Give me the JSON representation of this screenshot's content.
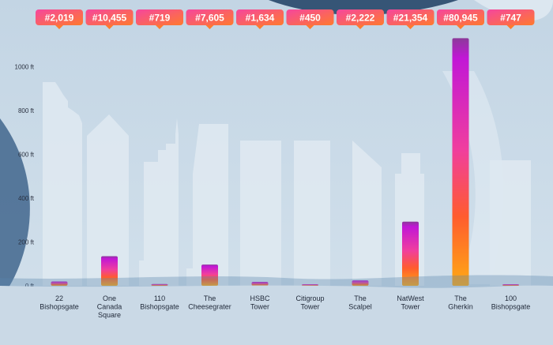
{
  "chart_data": {
    "type": "bar",
    "title": "",
    "xlabel": "",
    "ylabel": "",
    "unit": "ft",
    "ylim": [
      0,
      1100
    ],
    "yticks": [
      0,
      200,
      400,
      600,
      800,
      1000
    ],
    "ytick_labels": [
      "0 ft",
      "200 ft",
      "400 ft",
      "600 ft",
      "800 ft",
      "1000 ft"
    ],
    "grid": false,
    "categories": [
      {
        "label": [
          "22",
          "Bishopsgate"
        ],
        "badge": "#2,019",
        "value": 20
      },
      {
        "label": [
          "One",
          "Canada",
          "Square"
        ],
        "badge": "#10,455",
        "value": 135
      },
      {
        "label": [
          "110",
          "Bishopsgate"
        ],
        "badge": "#719",
        "value": 8
      },
      {
        "label": [
          "The",
          "Cheesegrater"
        ],
        "badge": "#7,605",
        "value": 97
      },
      {
        "label": [
          "HSBC",
          "Tower"
        ],
        "badge": "#1,634",
        "value": 18
      },
      {
        "label": [
          "Citigroup",
          "Tower"
        ],
        "badge": "#450",
        "value": 4
      },
      {
        "label": [
          "The",
          "Scalpel"
        ],
        "badge": "#2,222",
        "value": 25
      },
      {
        "label": [
          "NatWest",
          "Tower"
        ],
        "badge": "#21,354",
        "value": 293
      },
      {
        "label": [
          "The",
          "Gherkin"
        ],
        "badge": "#80,945",
        "value": 1130
      },
      {
        "label": [
          "100",
          "Bishopsgate"
        ],
        "badge": "#747",
        "value": 5
      }
    ],
    "colors": {
      "background": "#cbdbe8",
      "building": "#dde8f0",
      "tick_text": "#2a3140",
      "label_text": "#1f2838",
      "badge_start": "#f5469e",
      "badge_end": "#ff7a2e",
      "bar_top": "#c117d6",
      "bar_mid": "#ff5c2e",
      "bar_bottom": "#ffaa14"
    }
  }
}
